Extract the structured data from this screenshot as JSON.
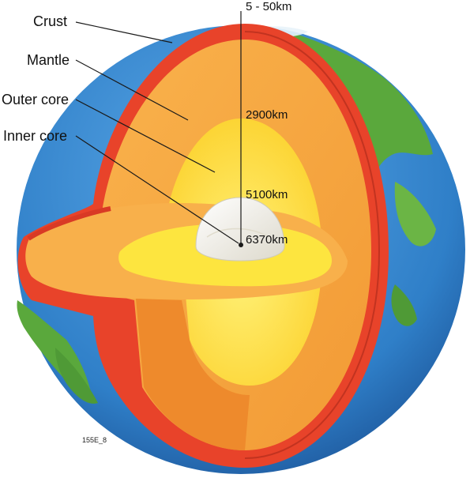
{
  "labels": {
    "crust": "Crust",
    "mantle": "Mantle",
    "outer_core": "Outer core",
    "inner_core": "Inner core"
  },
  "distances": {
    "crust_depth": "5 - 50km",
    "mantle_depth": "2900km",
    "outer_core_depth": "5100km",
    "center_depth": "6370km"
  },
  "figure_code": "155E_8",
  "colors": {
    "ocean": "#2f7fc8",
    "land": "#5aa83c",
    "crust": "#e8432a",
    "mantle": "#f7a742",
    "mantle_light": "#fbbd55",
    "outer_core": "#fde23a",
    "inner_core": "#f7f5ee",
    "line": "#1a1a1a"
  }
}
